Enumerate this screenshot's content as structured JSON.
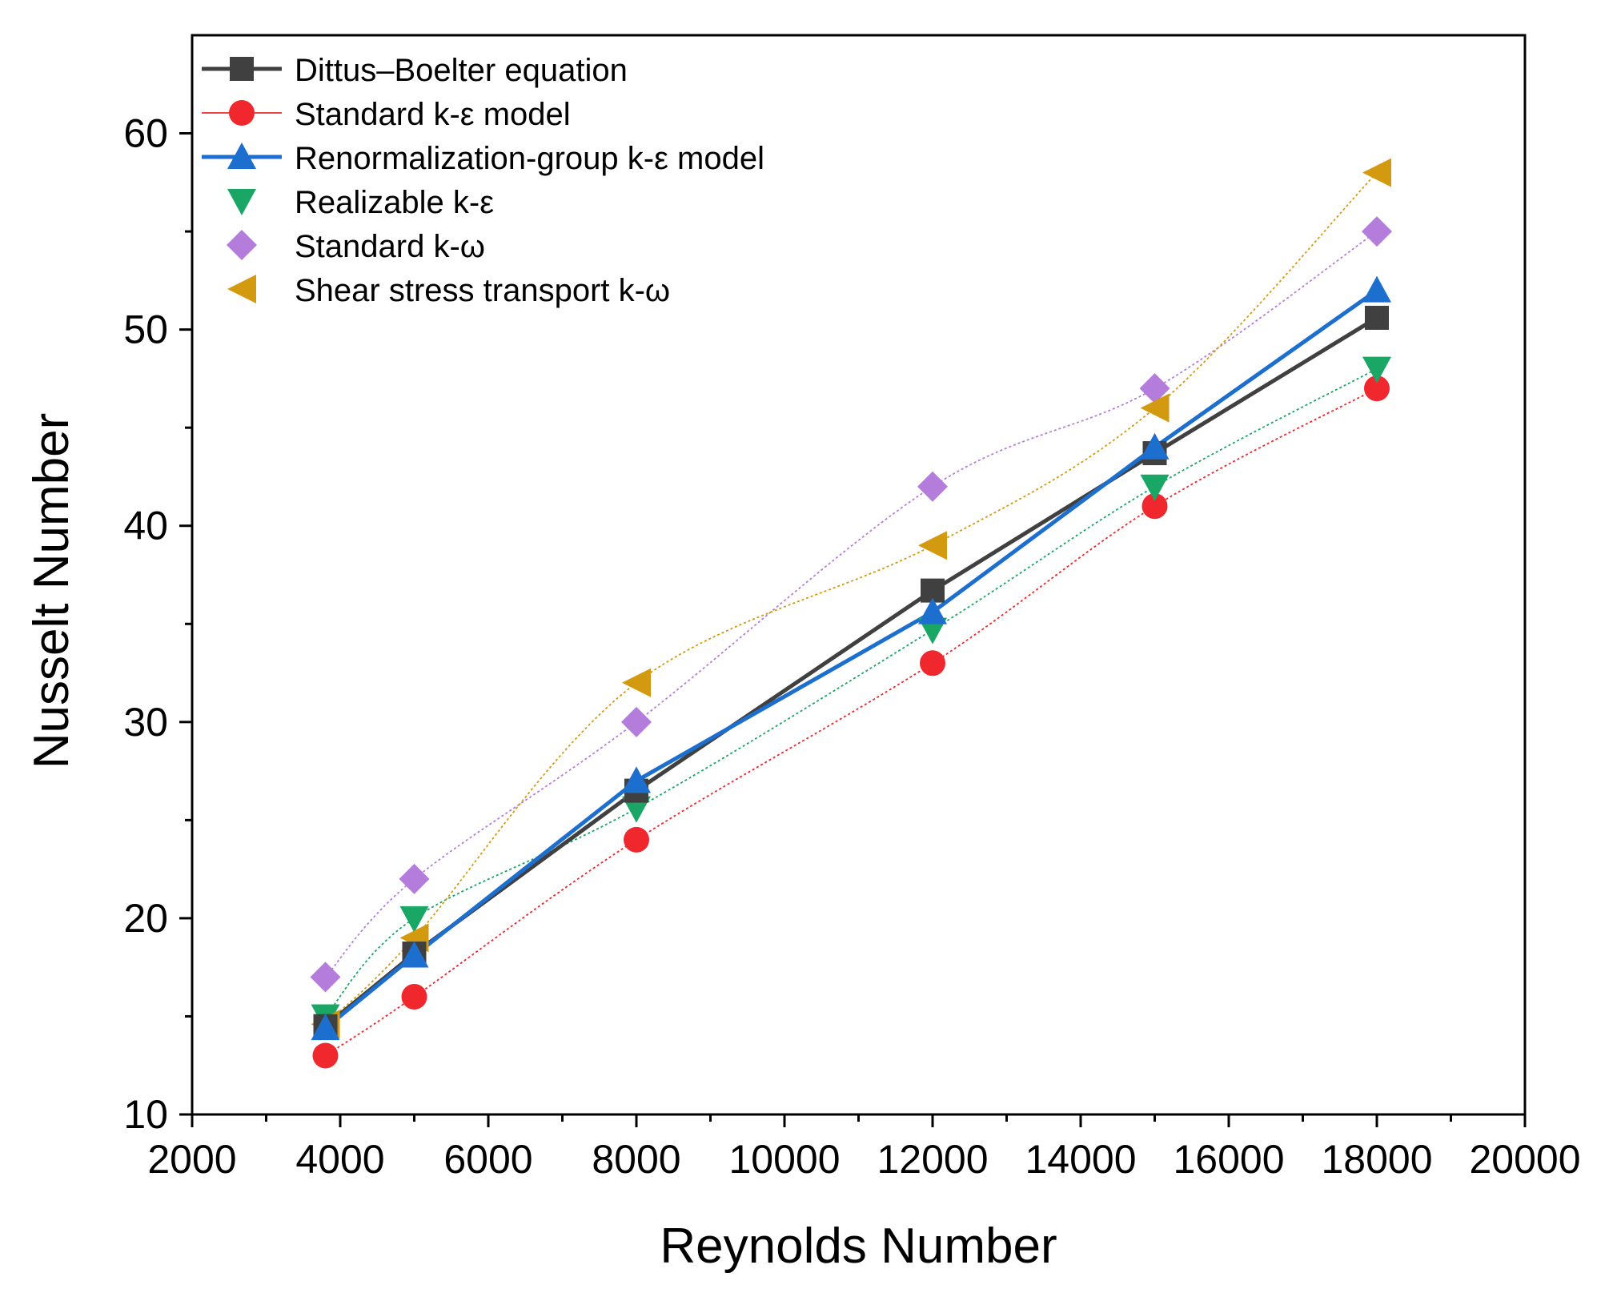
{
  "chart_data": {
    "type": "line",
    "title": "",
    "xlabel": "Reynolds Number",
    "ylabel": "Nusselt Number",
    "xlim": [
      2000,
      20000
    ],
    "ylim": [
      10,
      65
    ],
    "x_ticks": [
      2000,
      4000,
      6000,
      8000,
      10000,
      12000,
      14000,
      16000,
      18000,
      20000
    ],
    "y_ticks": [
      10,
      20,
      30,
      40,
      50,
      60
    ],
    "grid": false,
    "legend_position": "top-left",
    "x": [
      3800,
      5000,
      8000,
      12000,
      15000,
      18000
    ],
    "series": [
      {
        "name": "Dittus–Boelter equation",
        "marker": "square",
        "color": "#404040",
        "line": "solid-thick",
        "values": [
          14.5,
          18.2,
          26.5,
          36.7,
          43.7,
          50.6
        ]
      },
      {
        "name": "Standard k-ε model",
        "marker": "circle",
        "color": "#f0282d",
        "line": "thin-smooth",
        "values": [
          13.0,
          16.0,
          24.0,
          33.0,
          41.0,
          47.0
        ]
      },
      {
        "name": "Renormalization-group k-ε model",
        "marker": "triangle-up",
        "color": "#1d6fcf",
        "line": "solid-thick",
        "values": [
          14.4,
          18.1,
          27.0,
          35.6,
          44.0,
          52.0
        ]
      },
      {
        "name": "Realizable k-ε",
        "marker": "triangle-down",
        "color": "#1aa664",
        "line": "thin-smooth",
        "values": [
          15.0,
          20.0,
          25.6,
          34.7,
          42.0,
          48.0
        ]
      },
      {
        "name": "Standard k-ω",
        "marker": "diamond",
        "color": "#b57ddb",
        "line": "thin-smooth",
        "values": [
          17.0,
          22.0,
          30.0,
          42.0,
          47.0,
          55.0
        ]
      },
      {
        "name": "Shear stress transport k-ω",
        "marker": "triangle-left",
        "color": "#d49a0f",
        "line": "thin-smooth",
        "values": [
          14.6,
          19.0,
          32.0,
          39.0,
          46.0,
          58.0
        ]
      }
    ]
  }
}
